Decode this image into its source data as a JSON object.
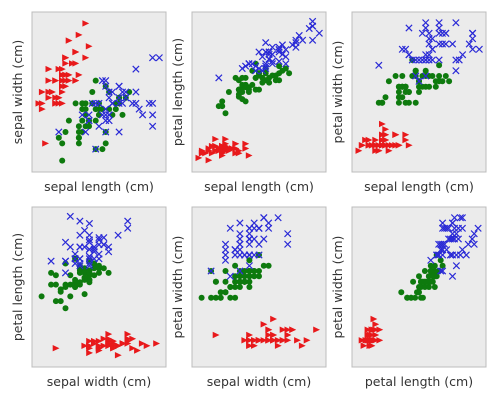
{
  "figure": {
    "background": "#ffffff",
    "panel_color": "#ebebeb",
    "border_color": "#bcbcbc"
  },
  "classes": [
    {
      "marker": "triangle",
      "color": "#e8191b"
    },
    {
      "marker": "circle",
      "color": "#0e7a0e"
    },
    {
      "marker": "cross",
      "color": "#2a2ad6"
    }
  ],
  "chart_data": [
    {
      "type": "scatter",
      "xlabel": "sepal length (cm)",
      "ylabel": "sepal width (cm)",
      "xlim": [
        4.1,
        8.1
      ],
      "ylim": [
        1.8,
        4.6
      ],
      "grid": false,
      "legend": "none"
    },
    {
      "type": "scatter",
      "xlabel": "sepal length (cm)",
      "ylabel": "petal length (cm)",
      "xlim": [
        4.1,
        8.1
      ],
      "ylim": [
        0.5,
        7.3
      ],
      "grid": false,
      "legend": "none"
    },
    {
      "type": "scatter",
      "xlabel": "sepal length (cm)",
      "ylabel": "petal width (cm)",
      "xlim": [
        4.1,
        8.1
      ],
      "ylim": [
        -0.3,
        2.7
      ],
      "grid": false,
      "legend": "none"
    },
    {
      "type": "scatter",
      "xlabel": "sepal width (cm)",
      "ylabel": "petal length (cm)",
      "xlim": [
        1.8,
        4.6
      ],
      "ylim": [
        0.5,
        7.3
      ],
      "grid": false,
      "legend": "none"
    },
    {
      "type": "scatter",
      "xlabel": "sepal width (cm)",
      "ylabel": "petal width (cm)",
      "xlim": [
        1.8,
        4.6
      ],
      "ylim": [
        -0.3,
        2.7
      ],
      "grid": false,
      "legend": "none"
    },
    {
      "type": "scatter",
      "xlabel": "petal length (cm)",
      "ylabel": "petal width (cm)",
      "xlim": [
        0.5,
        7.3
      ],
      "ylim": [
        -0.3,
        2.7
      ],
      "grid": false,
      "legend": "none"
    }
  ],
  "iris_measurements": {
    "columns": [
      "sepal length (cm)",
      "sepal width (cm)",
      "petal length (cm)",
      "petal width (cm)"
    ],
    "samples": [
      [
        5.1,
        3.5,
        1.4,
        0.2,
        0
      ],
      [
        4.9,
        3.0,
        1.4,
        0.2,
        0
      ],
      [
        4.7,
        3.2,
        1.3,
        0.2,
        0
      ],
      [
        4.6,
        3.1,
        1.5,
        0.2,
        0
      ],
      [
        5.0,
        3.6,
        1.4,
        0.2,
        0
      ],
      [
        5.4,
        3.9,
        1.7,
        0.4,
        0
      ],
      [
        4.6,
        3.4,
        1.4,
        0.3,
        0
      ],
      [
        5.0,
        3.4,
        1.5,
        0.2,
        0
      ],
      [
        4.4,
        2.9,
        1.4,
        0.2,
        0
      ],
      [
        4.9,
        3.1,
        1.5,
        0.1,
        0
      ],
      [
        5.4,
        3.7,
        1.5,
        0.2,
        0
      ],
      [
        4.8,
        3.4,
        1.6,
        0.2,
        0
      ],
      [
        4.8,
        3.0,
        1.4,
        0.1,
        0
      ],
      [
        4.3,
        3.0,
        1.1,
        0.1,
        0
      ],
      [
        5.8,
        4.0,
        1.2,
        0.2,
        0
      ],
      [
        5.7,
        4.4,
        1.5,
        0.4,
        0
      ],
      [
        5.4,
        3.9,
        1.3,
        0.4,
        0
      ],
      [
        5.1,
        3.5,
        1.4,
        0.3,
        0
      ],
      [
        5.7,
        3.8,
        1.7,
        0.3,
        0
      ],
      [
        5.1,
        3.8,
        1.5,
        0.3,
        0
      ],
      [
        5.4,
        3.4,
        1.7,
        0.2,
        0
      ],
      [
        5.1,
        3.7,
        1.5,
        0.4,
        0
      ],
      [
        4.6,
        3.6,
        1.0,
        0.2,
        0
      ],
      [
        5.1,
        3.3,
        1.7,
        0.5,
        0
      ],
      [
        4.8,
        3.4,
        1.9,
        0.2,
        0
      ],
      [
        5.0,
        3.0,
        1.6,
        0.2,
        0
      ],
      [
        5.0,
        3.4,
        1.6,
        0.4,
        0
      ],
      [
        5.2,
        3.5,
        1.5,
        0.2,
        0
      ],
      [
        5.2,
        3.4,
        1.4,
        0.2,
        0
      ],
      [
        4.7,
        3.2,
        1.6,
        0.2,
        0
      ],
      [
        4.8,
        3.1,
        1.6,
        0.2,
        0
      ],
      [
        5.4,
        3.4,
        1.5,
        0.4,
        0
      ],
      [
        5.2,
        4.1,
        1.5,
        0.1,
        0
      ],
      [
        5.5,
        4.2,
        1.4,
        0.2,
        0
      ],
      [
        4.9,
        3.1,
        1.5,
        0.2,
        0
      ],
      [
        5.0,
        3.2,
        1.2,
        0.2,
        0
      ],
      [
        5.5,
        3.5,
        1.3,
        0.2,
        0
      ],
      [
        4.9,
        3.6,
        1.4,
        0.1,
        0
      ],
      [
        4.4,
        3.0,
        1.3,
        0.2,
        0
      ],
      [
        5.1,
        3.4,
        1.5,
        0.2,
        0
      ],
      [
        5.0,
        3.5,
        1.3,
        0.3,
        0
      ],
      [
        4.5,
        2.3,
        1.3,
        0.3,
        0
      ],
      [
        4.4,
        3.2,
        1.3,
        0.2,
        0
      ],
      [
        5.0,
        3.5,
        1.6,
        0.6,
        0
      ],
      [
        5.1,
        3.8,
        1.9,
        0.4,
        0
      ],
      [
        4.8,
        3.0,
        1.4,
        0.3,
        0
      ],
      [
        5.1,
        3.8,
        1.6,
        0.2,
        0
      ],
      [
        4.6,
        3.2,
        1.4,
        0.2,
        0
      ],
      [
        5.3,
        3.7,
        1.5,
        0.2,
        0
      ],
      [
        5.0,
        3.3,
        1.4,
        0.2,
        0
      ],
      [
        7.0,
        3.2,
        4.7,
        1.4,
        1
      ],
      [
        6.4,
        3.2,
        4.5,
        1.5,
        1
      ],
      [
        6.9,
        3.1,
        4.9,
        1.5,
        1
      ],
      [
        5.5,
        2.3,
        4.0,
        1.3,
        1
      ],
      [
        6.5,
        2.8,
        4.6,
        1.5,
        1
      ],
      [
        5.7,
        2.8,
        4.5,
        1.3,
        1
      ],
      [
        6.3,
        3.3,
        4.7,
        1.6,
        1
      ],
      [
        4.9,
        2.4,
        3.3,
        1.0,
        1
      ],
      [
        6.6,
        2.9,
        4.6,
        1.3,
        1
      ],
      [
        5.2,
        2.7,
        3.9,
        1.4,
        1
      ],
      [
        5.0,
        2.0,
        3.5,
        1.0,
        1
      ],
      [
        5.9,
        3.0,
        4.2,
        1.5,
        1
      ],
      [
        6.0,
        2.2,
        4.0,
        1.0,
        1
      ],
      [
        6.1,
        2.9,
        4.7,
        1.4,
        1
      ],
      [
        5.6,
        2.9,
        3.6,
        1.3,
        1
      ],
      [
        6.7,
        3.1,
        4.4,
        1.4,
        1
      ],
      [
        5.6,
        3.0,
        4.5,
        1.5,
        1
      ],
      [
        5.8,
        2.7,
        4.1,
        1.0,
        1
      ],
      [
        6.2,
        2.2,
        4.5,
        1.5,
        1
      ],
      [
        5.6,
        2.5,
        3.9,
        1.1,
        1
      ],
      [
        5.9,
        3.2,
        4.8,
        1.8,
        1
      ],
      [
        6.1,
        2.8,
        4.0,
        1.3,
        1
      ],
      [
        6.3,
        2.5,
        4.9,
        1.5,
        1
      ],
      [
        6.1,
        2.8,
        4.7,
        1.2,
        1
      ],
      [
        6.4,
        2.9,
        4.3,
        1.3,
        1
      ],
      [
        6.6,
        3.0,
        4.4,
        1.4,
        1
      ],
      [
        6.8,
        2.8,
        4.8,
        1.4,
        1
      ],
      [
        6.7,
        3.0,
        5.0,
        1.7,
        1
      ],
      [
        6.0,
        2.9,
        4.5,
        1.5,
        1
      ],
      [
        5.7,
        2.6,
        3.5,
        1.0,
        1
      ],
      [
        5.5,
        2.4,
        3.8,
        1.1,
        1
      ],
      [
        5.5,
        2.4,
        3.7,
        1.0,
        1
      ],
      [
        5.8,
        2.7,
        3.9,
        1.2,
        1
      ],
      [
        6.0,
        2.7,
        5.1,
        1.6,
        1
      ],
      [
        5.4,
        3.0,
        4.5,
        1.5,
        1
      ],
      [
        6.0,
        3.4,
        4.5,
        1.6,
        1
      ],
      [
        6.7,
        3.1,
        4.7,
        1.5,
        1
      ],
      [
        6.3,
        2.3,
        4.4,
        1.3,
        1
      ],
      [
        5.6,
        3.0,
        4.1,
        1.3,
        1
      ],
      [
        5.5,
        2.5,
        4.0,
        1.3,
        1
      ],
      [
        5.5,
        2.6,
        4.4,
        1.2,
        1
      ],
      [
        6.1,
        3.0,
        4.6,
        1.4,
        1
      ],
      [
        5.8,
        2.6,
        4.0,
        1.2,
        1
      ],
      [
        5.0,
        2.3,
        3.3,
        1.0,
        1
      ],
      [
        5.6,
        2.7,
        4.2,
        1.3,
        1
      ],
      [
        5.7,
        3.0,
        4.2,
        1.2,
        1
      ],
      [
        5.7,
        2.9,
        4.2,
        1.3,
        1
      ],
      [
        6.2,
        2.9,
        4.3,
        1.3,
        1
      ],
      [
        5.1,
        2.5,
        3.0,
        1.1,
        1
      ],
      [
        5.7,
        2.8,
        4.1,
        1.3,
        1
      ],
      [
        6.3,
        3.3,
        6.0,
        2.5,
        2
      ],
      [
        5.8,
        2.7,
        5.1,
        1.9,
        2
      ],
      [
        7.1,
        3.0,
        5.9,
        2.1,
        2
      ],
      [
        6.3,
        2.9,
        5.6,
        1.8,
        2
      ],
      [
        6.5,
        3.0,
        5.8,
        2.2,
        2
      ],
      [
        7.6,
        3.0,
        6.6,
        2.1,
        2
      ],
      [
        4.9,
        2.5,
        4.5,
        1.7,
        2
      ],
      [
        7.3,
        2.9,
        6.3,
        1.8,
        2
      ],
      [
        6.7,
        2.5,
        5.8,
        1.8,
        2
      ],
      [
        7.2,
        3.6,
        6.1,
        2.5,
        2
      ],
      [
        6.5,
        3.2,
        5.1,
        2.0,
        2
      ],
      [
        6.4,
        2.7,
        5.3,
        1.9,
        2
      ],
      [
        6.8,
        3.0,
        5.5,
        2.1,
        2
      ],
      [
        5.7,
        2.5,
        5.0,
        2.0,
        2
      ],
      [
        5.8,
        2.8,
        5.1,
        2.4,
        2
      ],
      [
        6.4,
        3.2,
        5.3,
        2.3,
        2
      ],
      [
        6.5,
        3.0,
        5.5,
        1.8,
        2
      ],
      [
        7.7,
        3.8,
        6.7,
        2.2,
        2
      ],
      [
        7.7,
        2.6,
        6.9,
        2.3,
        2
      ],
      [
        6.0,
        2.2,
        5.0,
        1.5,
        2
      ],
      [
        6.9,
        3.2,
        5.7,
        2.3,
        2
      ],
      [
        5.6,
        2.8,
        4.9,
        2.0,
        2
      ],
      [
        7.7,
        2.8,
        6.7,
        2.0,
        2
      ],
      [
        6.3,
        2.7,
        4.9,
        1.8,
        2
      ],
      [
        6.7,
        3.3,
        5.7,
        2.1,
        2
      ],
      [
        7.2,
        3.2,
        6.0,
        1.8,
        2
      ],
      [
        6.2,
        2.8,
        4.8,
        1.8,
        2
      ],
      [
        6.1,
        3.0,
        4.9,
        1.8,
        2
      ],
      [
        6.4,
        2.8,
        5.6,
        2.1,
        2
      ],
      [
        7.2,
        3.0,
        5.8,
        1.6,
        2
      ],
      [
        7.4,
        2.8,
        6.1,
        1.9,
        2
      ],
      [
        7.9,
        3.8,
        6.4,
        2.0,
        2
      ],
      [
        6.4,
        2.8,
        5.6,
        2.2,
        2
      ],
      [
        6.3,
        2.8,
        5.1,
        1.5,
        2
      ],
      [
        6.1,
        2.6,
        5.6,
        1.4,
        2
      ],
      [
        7.7,
        3.0,
        6.1,
        2.3,
        2
      ],
      [
        6.3,
        3.4,
        5.6,
        2.4,
        2
      ],
      [
        6.4,
        3.1,
        5.5,
        1.8,
        2
      ],
      [
        6.0,
        3.0,
        4.8,
        1.8,
        2
      ],
      [
        6.9,
        3.1,
        5.4,
        2.1,
        2
      ],
      [
        6.7,
        3.1,
        5.6,
        2.4,
        2
      ],
      [
        6.9,
        3.1,
        5.1,
        2.3,
        2
      ],
      [
        5.8,
        2.7,
        5.1,
        1.9,
        2
      ],
      [
        6.8,
        3.2,
        5.9,
        2.3,
        2
      ],
      [
        6.7,
        3.3,
        5.7,
        2.5,
        2
      ],
      [
        6.7,
        3.0,
        5.2,
        2.3,
        2
      ],
      [
        6.3,
        2.5,
        5.0,
        1.9,
        2
      ],
      [
        6.5,
        3.0,
        5.2,
        2.0,
        2
      ],
      [
        6.2,
        3.4,
        5.4,
        2.3,
        2
      ],
      [
        5.9,
        3.0,
        5.1,
        1.8,
        2
      ]
    ]
  }
}
